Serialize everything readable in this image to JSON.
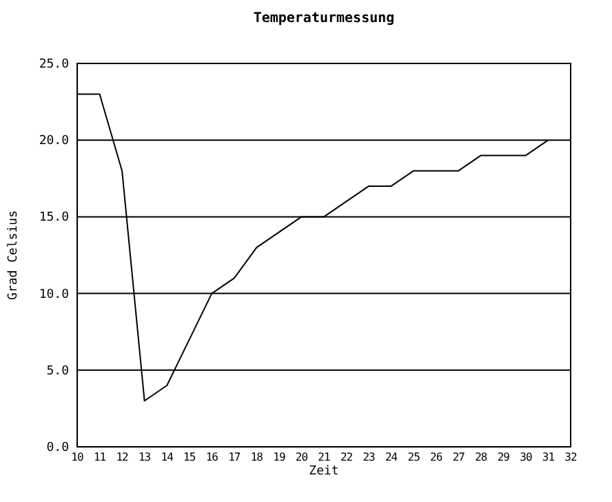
{
  "chart_data": {
    "type": "line",
    "title": "Temperaturmessung",
    "xlabel": "Zeit",
    "ylabel": "Grad Celsius",
    "x": [
      10,
      11,
      12,
      13,
      14,
      15,
      16,
      17,
      18,
      19,
      20,
      21,
      22,
      23,
      24,
      25,
      26,
      27,
      28,
      29,
      30,
      31
    ],
    "series": [
      {
        "color": "#000000",
        "values": [
          23,
          23,
          18,
          3,
          4,
          7,
          10,
          11,
          13,
          14,
          15,
          15,
          16,
          17,
          17,
          18,
          18,
          18,
          19,
          19,
          19,
          20
        ]
      }
    ],
    "xlim": [
      10,
      32
    ],
    "xticks": [
      10,
      11,
      12,
      13,
      14,
      15,
      16,
      17,
      18,
      19,
      20,
      21,
      22,
      23,
      24,
      25,
      26,
      27,
      28,
      29,
      30,
      31,
      32
    ],
    "ylim": [
      0,
      25
    ],
    "yticks": [
      {
        "value": 0,
        "label": "0.0"
      },
      {
        "value": 5,
        "label": "5.0"
      },
      {
        "value": 10,
        "label": "10.0"
      },
      {
        "value": 15,
        "label": "15.0"
      },
      {
        "value": 20,
        "label": "20.0"
      },
      {
        "value": 25,
        "label": "25.0"
      }
    ],
    "grid": "y",
    "marker": "none",
    "line_style": "solid"
  }
}
